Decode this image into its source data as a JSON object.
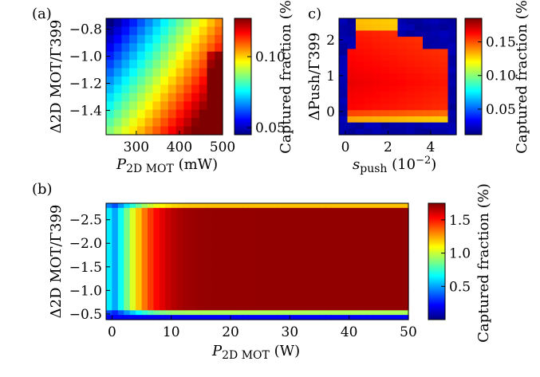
{
  "colormap_stops": [
    "#00007f",
    "#0000ff",
    "#007fff",
    "#00ffff",
    "#7fff7f",
    "#ffff00",
    "#ff7f00",
    "#ff0000",
    "#7f0000"
  ],
  "frame_color": "#000000",
  "chart_data": [
    {
      "panel": "(a)",
      "type": "heatmap",
      "x": {
        "label_main": "P",
        "label_sub": "2D MOT",
        "label_unit": " (mW)",
        "range": [
          230,
          500
        ],
        "ticks": [
          300,
          400,
          500
        ],
        "tick_labels": [
          "300",
          "400",
          "500"
        ]
      },
      "y": {
        "label": "Δ2D MOT/Γ399",
        "range": [
          -0.72,
          -1.58
        ],
        "ticks": [
          -1.4,
          -1.2,
          -1.0,
          -0.8
        ],
        "tick_labels": [
          "−1.4",
          "−1.2",
          "−1.0",
          "−0.8"
        ]
      },
      "colorbar": {
        "label": "Captured fraction (%)",
        "range": [
          0.045,
          0.127
        ],
        "ticks": [
          0.05,
          0.1
        ],
        "tick_labels": [
          "0.05",
          "0.10"
        ]
      },
      "grid_shape": [
        15,
        14
      ],
      "model": {
        "description": "fraction rises with power and with smaller detuning",
        "min": 0.046,
        "max": 0.125
      }
    },
    {
      "panel": "c)",
      "type": "heatmap",
      "x": {
        "label_main": "s",
        "label_sub": "push",
        "label_unit": " (10",
        "label_exp": "−2",
        "label_close": ")",
        "range": [
          -0.3,
          5.2
        ],
        "ticks": [
          0,
          2,
          4
        ],
        "tick_labels": [
          "0",
          "2",
          "4"
        ]
      },
      "y": {
        "label": "ΔPush/Γ399",
        "range": [
          2.6,
          -0.65
        ],
        "ticks": [
          2,
          1,
          0
        ],
        "tick_labels": [
          "2",
          "1",
          "0"
        ]
      },
      "colorbar": {
        "label": "Captured fraction (%)",
        "range": [
          0.012,
          0.185
        ],
        "ticks": [
          0.05,
          0.1,
          0.15
        ],
        "tick_labels": [
          "0.05",
          "0.10",
          "0.15"
        ]
      },
      "grid_shape": [
        14,
        19
      ],
      "model": {
        "description": "high fraction inside an elongated region, low outside",
        "min": 0.015,
        "max": 0.18
      }
    },
    {
      "panel": "(b)",
      "type": "heatmap",
      "x": {
        "label_main": "P",
        "label_sub": "2D MOT",
        "label_unit": " (W)",
        "range": [
          -1,
          50
        ],
        "ticks": [
          0,
          10,
          20,
          30,
          40,
          50
        ],
        "tick_labels": [
          "0",
          "10",
          "20",
          "30",
          "40",
          "50"
        ]
      },
      "y": {
        "label": "Δ2D MOT/Γ399",
        "range": [
          -2.85,
          -0.38
        ],
        "ticks": [
          -2.5,
          -2.0,
          -1.5,
          -1.0,
          -0.5
        ],
        "tick_labels": [
          "−2.5",
          "−2.0",
          "−1.5",
          "−1.0",
          "−0.5"
        ]
      },
      "colorbar": {
        "label": "Captured fraction (%)",
        "range": [
          0.0,
          1.75
        ],
        "ticks": [
          0.5,
          1.0,
          1.5
        ],
        "tick_labels": [
          "0.5",
          "1.0",
          "1.5"
        ]
      },
      "grid_shape": [
        51,
        25
      ],
      "model": {
        "description": "fraction saturates near 1.7 above ~10 W, rises from 0 at low power",
        "min": 0.02,
        "max": 1.7
      }
    }
  ]
}
